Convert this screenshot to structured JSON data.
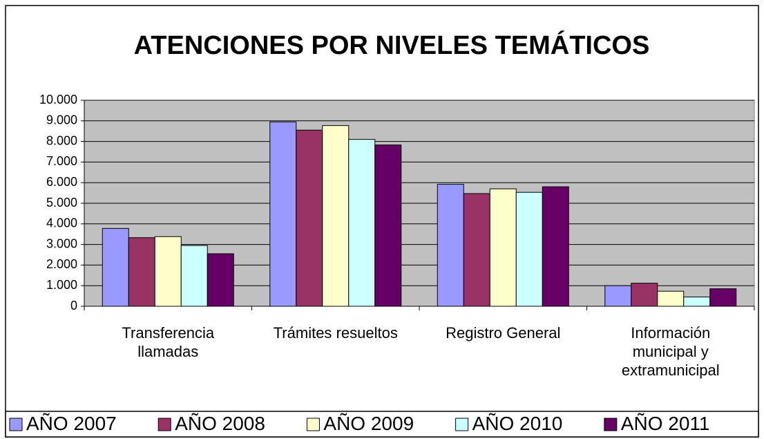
{
  "chart_data": {
    "type": "bar",
    "title": "ATENCIONES POR NIVELES TEMÁTICOS",
    "categories": [
      "Transferencia llamadas",
      "Trámites resueltos",
      "Registro General",
      "Información municipal y extramunicipal"
    ],
    "series": [
      {
        "name": "AÑO 2007",
        "color": "#9999ff",
        "values": [
          3780,
          8950,
          5920,
          1000
        ]
      },
      {
        "name": "AÑO 2008",
        "color": "#993366",
        "values": [
          3330,
          8550,
          5470,
          1120
        ]
      },
      {
        "name": "AÑO 2009",
        "color": "#ffffcc",
        "values": [
          3380,
          8770,
          5700,
          730
        ]
      },
      {
        "name": "AÑO 2010",
        "color": "#ccffff",
        "values": [
          2950,
          8100,
          5530,
          450
        ]
      },
      {
        "name": "AÑO 2011",
        "color": "#660066",
        "values": [
          2550,
          7830,
          5800,
          850
        ]
      }
    ],
    "ylim": [
      0,
      10000
    ],
    "yticks": [
      0,
      {
        "value": 1000,
        "label": "1.000"
      },
      {
        "value": 2000,
        "label": "2.000"
      },
      {
        "value": 3000,
        "label": "3.000"
      },
      {
        "value": 4000,
        "label": "4.000"
      },
      {
        "value": 5000,
        "label": "5.000"
      },
      {
        "value": 6000,
        "label": "6.000"
      },
      {
        "value": 7000,
        "label": "7.000"
      },
      {
        "value": 8000,
        "label": "8.000"
      },
      {
        "value": 9000,
        "label": "9.000"
      },
      {
        "value": 10000,
        "label": "10.000"
      }
    ],
    "grid": true,
    "legend": "bottom"
  }
}
